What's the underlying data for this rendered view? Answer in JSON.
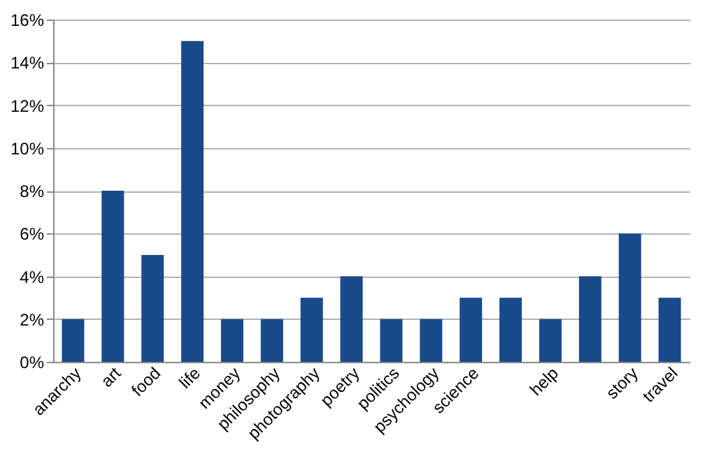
{
  "chart_data": {
    "type": "bar",
    "categories": [
      "anarchy",
      "art",
      "food",
      "life",
      "money",
      "philosophy",
      "photography",
      "poetry",
      "politics",
      "psychology",
      "science",
      null,
      "help",
      null,
      "story",
      "travel"
    ],
    "values": [
      2,
      8,
      5,
      15,
      2,
      2,
      3,
      4,
      2,
      2,
      3,
      3,
      2,
      4,
      6,
      3
    ],
    "color": "#1a4a8a",
    "ylim": [
      0,
      16
    ],
    "yticks": [
      {
        "value": 0,
        "label": "0%"
      },
      {
        "value": 2,
        "label": "2%"
      },
      {
        "value": 4,
        "label": "4%"
      },
      {
        "value": 6,
        "label": "6%"
      },
      {
        "value": 8,
        "label": "8%"
      },
      {
        "value": 10,
        "label": "10%"
      },
      {
        "value": 12,
        "label": "12%"
      },
      {
        "value": 14,
        "label": "14%"
      },
      {
        "value": 16,
        "label": "16%"
      }
    ],
    "grid": "y"
  }
}
